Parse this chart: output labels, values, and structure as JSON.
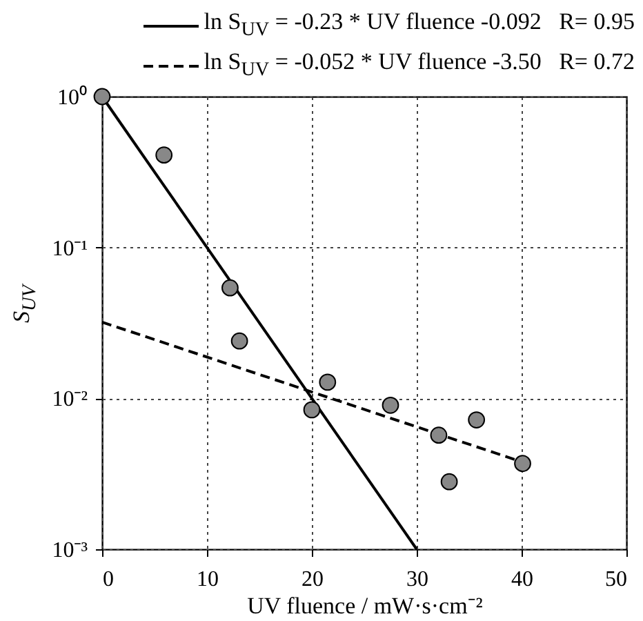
{
  "chart_data": {
    "type": "scatter",
    "xlabel": "UV fluence / mW·s·cm⁻²",
    "ylabel": "S$_{UV}$",
    "series": [
      {
        "type": "scatter",
        "color": "#888888",
        "marker": "circle",
        "x": [
          0,
          5.9,
          12.2,
          13.1,
          20.0,
          21.5,
          27.5,
          32.1,
          33.1,
          35.7,
          40.1
        ],
        "values": [
          1,
          0.41,
          0.054,
          0.024,
          0.0084,
          0.0128,
          0.009,
          0.0057,
          0.0028,
          0.0072,
          0.0037
        ]
      },
      {
        "type": "line",
        "name": "ln S$_{UV}$ = -0.23 * UV fluence -0.092   R= 0.95",
        "color": "#000000",
        "line_style": "solid",
        "marker": "none",
        "x": [
          0,
          30
        ],
        "values": [
          1,
          0.001
        ]
      },
      {
        "type": "line",
        "name": "ln S$_{UV}$ = -0.052 * UV fluence -3.50   R= 0.72",
        "color": "#000000",
        "line_style": "dashed",
        "marker": "none",
        "x": [
          0,
          40
        ],
        "values": [
          0.032,
          0.0038
        ]
      }
    ],
    "xlim": [
      0,
      50
    ],
    "xticks": [
      0,
      10,
      20,
      30,
      40,
      50
    ],
    "ylim": [
      0.001,
      1
    ],
    "yticks": [
      {
        "value": 1,
        "label": "10⁰"
      },
      {
        "value": 0.1,
        "label": "10⁻¹"
      },
      {
        "value": 0.01,
        "label": "10⁻²"
      },
      {
        "value": 0.001,
        "label": "10⁻³"
      }
    ],
    "log": "y",
    "grid": true,
    "legend": "top"
  }
}
